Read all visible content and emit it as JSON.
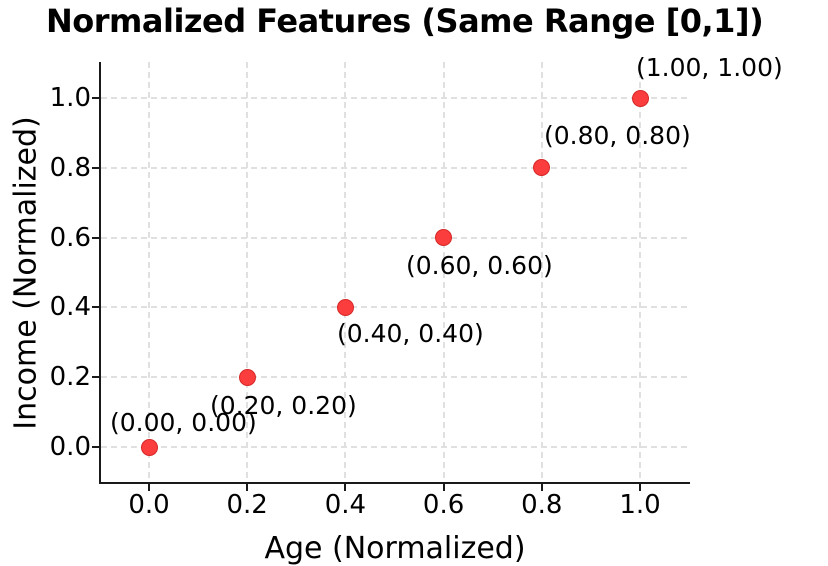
{
  "chart_data": {
    "type": "scatter",
    "title": "Normalized Features (Same Range [0,1])",
    "xlabel": "Age (Normalized)",
    "ylabel": "Income (Normalized)",
    "x": [
      0.0,
      0.2,
      0.4,
      0.6,
      0.8,
      1.0
    ],
    "y": [
      0.0,
      0.2,
      0.4,
      0.6,
      0.8,
      1.0
    ],
    "point_labels": [
      "(0.00, 0.00)",
      "(0.20, 0.20)",
      "(0.40, 0.40)",
      "(0.60, 0.60)",
      "(0.80, 0.80)",
      "(1.00, 1.00)"
    ],
    "xticks": [
      0.0,
      0.2,
      0.4,
      0.6,
      0.8,
      1.0
    ],
    "yticks": [
      0.0,
      0.2,
      0.4,
      0.6,
      0.8,
      1.0
    ],
    "xtick_labels": [
      "0.0",
      "0.2",
      "0.4",
      "0.6",
      "0.8",
      "1.0"
    ],
    "ytick_labels": [
      "0.0",
      "0.2",
      "0.4",
      "0.6",
      "0.8",
      "1.0"
    ],
    "xlim": [
      -0.1,
      1.1
    ],
    "ylim": [
      -0.11,
      1.1
    ],
    "grid": true,
    "grid_style": "dashed",
    "legend": "none",
    "marker": "circle"
  },
  "colors": {
    "marker_fill": "#fb3d3d",
    "marker_edge": "#d62828",
    "grid": "#e0e0e0",
    "axis": "#1a1a1a",
    "text": "#000000",
    "background": "#ffffff"
  }
}
